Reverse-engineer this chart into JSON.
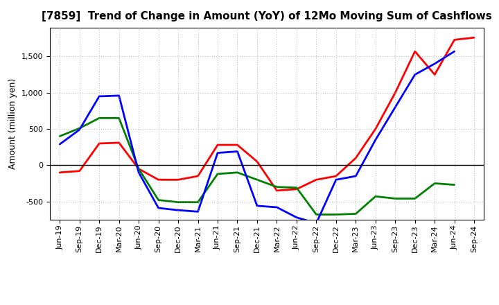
{
  "title": "[7859]  Trend of Change in Amount (YoY) of 12Mo Moving Sum of Cashflows",
  "ylabel": "Amount (million yen)",
  "x_labels": [
    "Jun-19",
    "Sep-19",
    "Dec-19",
    "Mar-20",
    "Jun-20",
    "Sep-20",
    "Dec-20",
    "Mar-21",
    "Jun-21",
    "Sep-21",
    "Dec-21",
    "Mar-22",
    "Jun-22",
    "Sep-22",
    "Dec-22",
    "Mar-23",
    "Jun-23",
    "Sep-23",
    "Dec-23",
    "Mar-24",
    "Jun-24",
    "Sep-24"
  ],
  "operating": [
    -100,
    -80,
    300,
    310,
    -50,
    -200,
    -200,
    -150,
    280,
    280,
    50,
    -350,
    -330,
    -200,
    -150,
    100,
    500,
    1000,
    1570,
    1250,
    1730,
    1760
  ],
  "investing": [
    400,
    510,
    650,
    650,
    -50,
    -480,
    -510,
    -510,
    -120,
    -100,
    -200,
    -300,
    -310,
    -680,
    -680,
    -670,
    -430,
    -460,
    -460,
    -250,
    -270,
    null
  ],
  "free": [
    290,
    490,
    950,
    960,
    -100,
    -590,
    -620,
    -640,
    170,
    190,
    -560,
    -580,
    -720,
    -800,
    -200,
    -150,
    350,
    800,
    1250,
    1400,
    1570,
    null
  ],
  "operating_color": "#ff0000",
  "investing_color": "#008000",
  "free_color": "#0000ff",
  "ylim": [
    -750,
    1900
  ],
  "yticks": [
    -500,
    0,
    500,
    1000,
    1500
  ],
  "background_color": "#ffffff",
  "grid_color": "#999999",
  "linewidth": 2.0,
  "title_fontsize": 11,
  "tick_fontsize": 8,
  "ylabel_fontsize": 9,
  "legend_fontsize": 9
}
